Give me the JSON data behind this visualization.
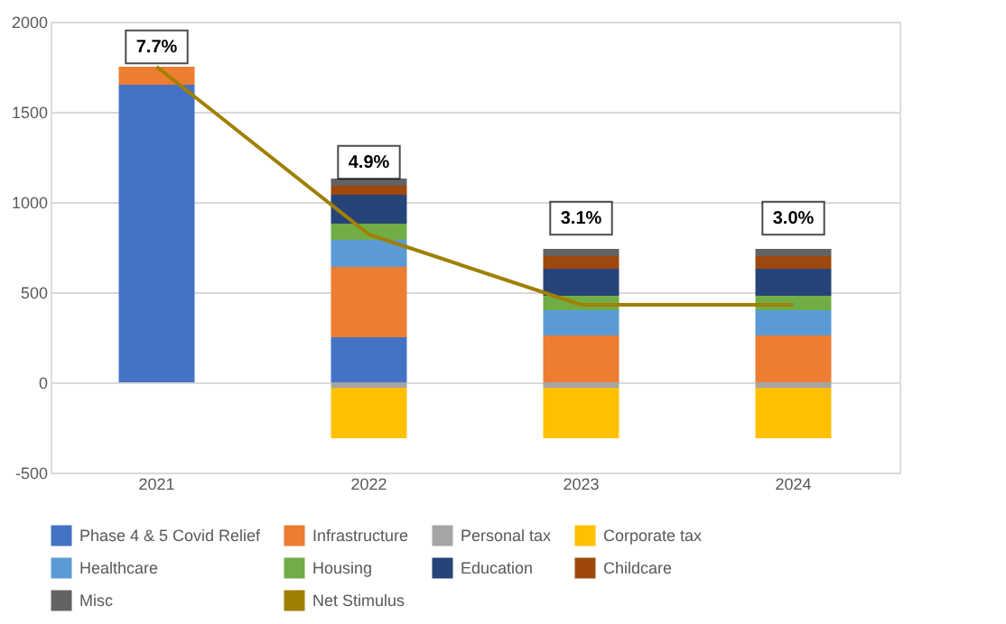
{
  "chart_data": {
    "type": "bar",
    "stacked": true,
    "categories": [
      "2021",
      "2022",
      "2023",
      "2024"
    ],
    "series": [
      {
        "name": "Phase 4 & 5 Covid Relief",
        "color": "#4472c4",
        "values": [
          1650,
          250,
          null,
          null
        ]
      },
      {
        "name": "Infrastructure",
        "color": "#ed7d31",
        "values": [
          100,
          390,
          260,
          260
        ]
      },
      {
        "name": "Personal tax",
        "color": "#a5a5a5",
        "values": [
          null,
          -30,
          -30,
          -30
        ]
      },
      {
        "name": "Corporate tax",
        "color": "#ffc000",
        "values": [
          null,
          -280,
          -280,
          -280
        ]
      },
      {
        "name": "Healthcare",
        "color": "#5b9bd5",
        "values": [
          null,
          150,
          140,
          140
        ]
      },
      {
        "name": "Housing",
        "color": "#70ad47",
        "values": [
          null,
          90,
          80,
          80
        ]
      },
      {
        "name": "Education",
        "color": "#264478",
        "values": [
          null,
          160,
          150,
          150
        ]
      },
      {
        "name": "Childcare",
        "color": "#9e480e",
        "values": [
          null,
          50,
          70,
          70
        ]
      },
      {
        "name": "Misc",
        "color": "#636363",
        "values": [
          null,
          40,
          40,
          40
        ]
      },
      {
        "name": "Net Stimulus",
        "color": "#a08000",
        "type": "line",
        "values": [
          1750,
          820,
          430,
          430
        ]
      }
    ],
    "ylim": [
      -500,
      2000
    ],
    "yticks": [
      -500,
      0,
      500,
      1000,
      1500,
      2000
    ],
    "grid": "y",
    "legend": "bottom",
    "annotations": [
      {
        "text": "7.7%",
        "x": "2021",
        "y": 1860
      },
      {
        "text": "4.9%",
        "x": "2022",
        "y": 1220
      },
      {
        "text": "3.1%",
        "x": "2023",
        "y": 910
      },
      {
        "text": "3.0%",
        "x": "2024",
        "y": 910
      }
    ]
  }
}
